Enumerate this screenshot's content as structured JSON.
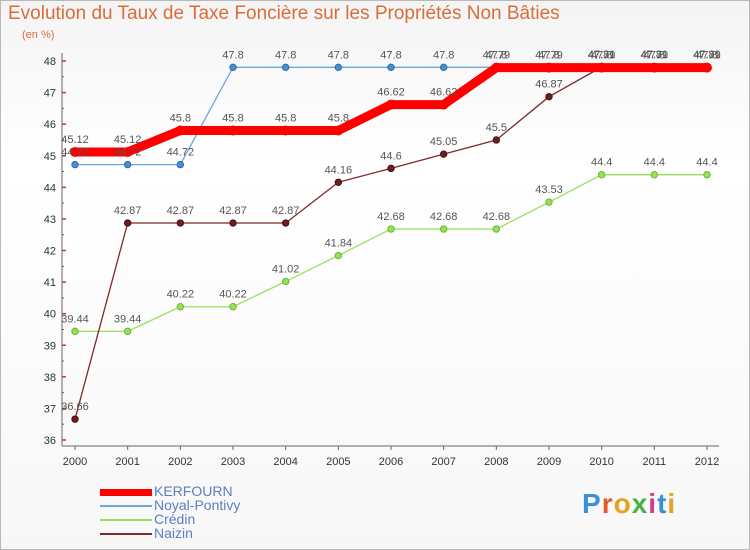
{
  "chart_data": {
    "type": "line",
    "title": "Evolution du Taux de Taxe Foncière sur les Propriétés Non Bâties",
    "ylabel": "(en %)",
    "xlabel": "",
    "x": [
      "2000",
      "2001",
      "2002",
      "2003",
      "2004",
      "2005",
      "2006",
      "2007",
      "2008",
      "2009",
      "2010",
      "2011",
      "2012"
    ],
    "ylim": [
      36,
      48
    ],
    "yticks": [
      36,
      37,
      38,
      39,
      40,
      41,
      42,
      43,
      44,
      45,
      46,
      47,
      48
    ],
    "grid": false,
    "legend_position": "bottom-left",
    "series": [
      {
        "name": "KERFOURN",
        "color": "#ff0000",
        "values": [
          45.12,
          45.12,
          45.8,
          45.8,
          45.8,
          45.8,
          46.62,
          46.62,
          47.79,
          47.79,
          47.79,
          47.79,
          47.79
        ]
      },
      {
        "name": "Noyal-Pontivy",
        "color": "#6ea6d8",
        "values": [
          44.72,
          44.72,
          44.72,
          47.8,
          47.8,
          47.8,
          47.8,
          47.8,
          47.8,
          47.8,
          47.8,
          47.8,
          47.8
        ]
      },
      {
        "name": "Crédin",
        "color": "#99e05a",
        "values": [
          39.44,
          39.44,
          40.22,
          40.22,
          41.02,
          41.84,
          42.68,
          42.68,
          42.68,
          43.53,
          44.4,
          44.4,
          44.4
        ]
      },
      {
        "name": "Naizin",
        "color": "#7a2a2a",
        "values": [
          36.66,
          42.87,
          42.87,
          42.87,
          42.87,
          44.16,
          44.6,
          45.05,
          45.5,
          46.87,
          47.81,
          47.81,
          47.81
        ]
      }
    ]
  },
  "logo": {
    "text": "Proxiti"
  }
}
